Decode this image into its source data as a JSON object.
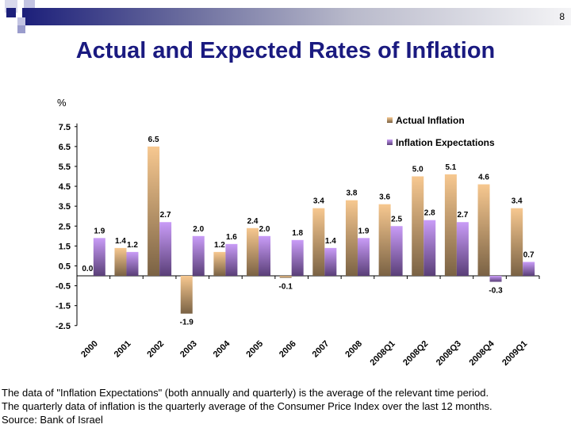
{
  "slide": {
    "page_number": "8",
    "title": "Actual and Expected Rates of Inflation",
    "notes": [
      "The data of \"Inflation Expectations\" (both annually and quarterly) is the average of the relevant time period.",
      "The quarterly data of inflation is the quarterly average of the Consumer Price Index over the last 12 months.",
      "Source: Bank of Israel"
    ]
  },
  "chart_data": {
    "type": "bar",
    "title": "",
    "ylabel": "%",
    "xlabel": "",
    "categories": [
      "2000",
      "2001",
      "2002",
      "2003",
      "2004",
      "2005",
      "2006",
      "2007",
      "2008",
      "2008Q1",
      "2008Q2",
      "2008Q3",
      "2008Q4",
      "2009Q1"
    ],
    "series": [
      {
        "name": "Actual Inflation",
        "color": "#f2c08c",
        "values": [
          0.0,
          1.4,
          6.5,
          -1.9,
          1.2,
          2.4,
          -0.1,
          3.4,
          3.8,
          3.6,
          5.0,
          5.1,
          4.6,
          3.4
        ]
      },
      {
        "name": "Inflation Expectations",
        "color": "#c596f2",
        "values": [
          1.9,
          1.2,
          2.7,
          2.0,
          1.6,
          2.0,
          1.8,
          1.4,
          1.9,
          2.5,
          2.8,
          2.7,
          -0.3,
          0.7
        ]
      }
    ],
    "yticks": [
      "7.5",
      "6.5",
      "5.5",
      "4.5",
      "3.5",
      "2.5",
      "1.5",
      "0.5",
      "-0.5",
      "-1.5",
      "-2.5"
    ],
    "ylim": [
      -2.5,
      7.5
    ],
    "grid": false,
    "legend": "top-right",
    "data_labels": true
  }
}
